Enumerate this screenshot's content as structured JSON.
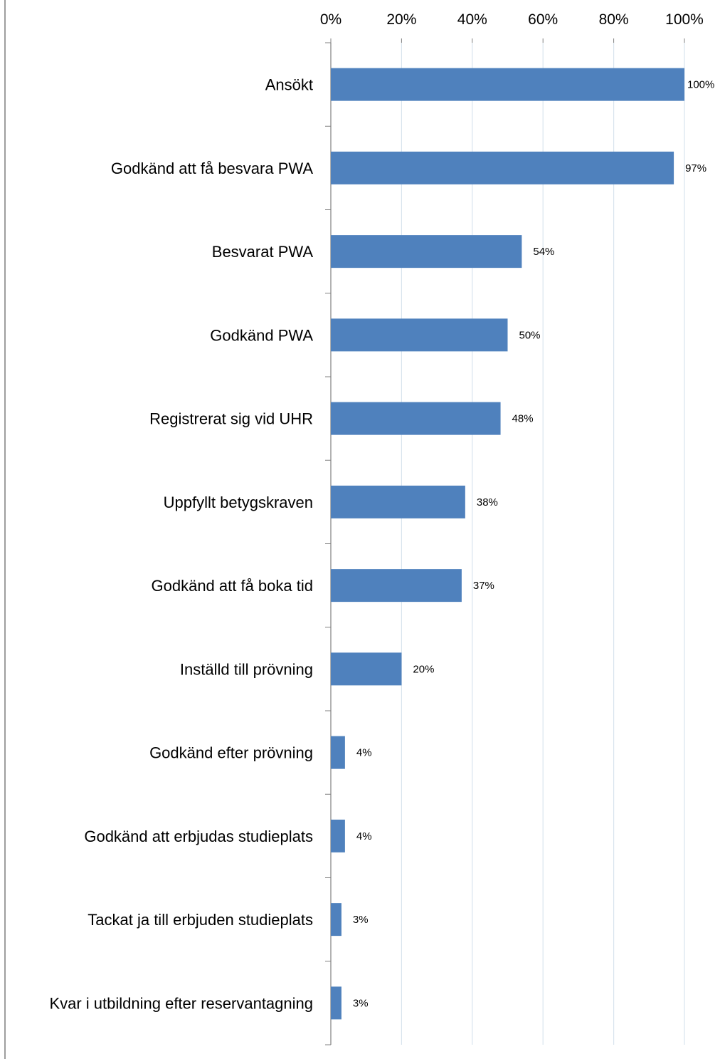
{
  "chart_data": {
    "type": "bar",
    "orientation": "horizontal",
    "categories": [
      "Ansökt",
      "Godkänd att få besvara PWA",
      "Besvarat PWA",
      "Godkänd PWA",
      "Registrerat sig vid UHR",
      "Uppfyllt betygskraven",
      "Godkänd att få boka tid",
      "Inställd till prövning",
      "Godkänd efter prövning",
      "Godkänd att erbjudas studieplats",
      "Tackat ja till erbjuden studieplats",
      "Kvar i utbildning efter reservantagning"
    ],
    "values": [
      100,
      97,
      54,
      50,
      48,
      38,
      37,
      20,
      4,
      4,
      3,
      3
    ],
    "data_labels": [
      "100%",
      "97%",
      "54%",
      "50%",
      "48%",
      "38%",
      "37%",
      "20%",
      "4%",
      "4%",
      "3%",
      "3%"
    ],
    "xlim": [
      0,
      100
    ],
    "x_ticks": [
      0,
      20,
      40,
      60,
      80,
      100
    ],
    "x_tick_labels": [
      "0%",
      "20%",
      "40%",
      "60%",
      "80%",
      "100%"
    ],
    "x_axis_position": "top",
    "grid": true,
    "legend": "none",
    "colors": {
      "bar": "#4f81bd",
      "grid": "#d9e4ee",
      "axis": "#808080",
      "frame": "#7f7f7f"
    }
  }
}
